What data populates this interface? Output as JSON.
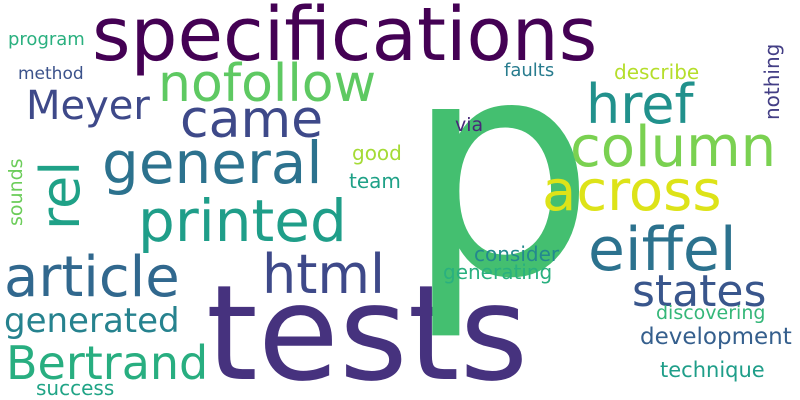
{
  "words": [
    {
      "text": "tests",
      "color": "#46327e"
    },
    {
      "text": "p",
      "color": "#44bf70"
    },
    {
      "text": "specifications",
      "color": "#440154"
    },
    {
      "text": "across",
      "color": "#dde318"
    },
    {
      "text": "general",
      "color": "#2c728e"
    },
    {
      "text": "printed",
      "color": "#1f9e89"
    },
    {
      "text": "nofollow",
      "color": "#5ec962"
    },
    {
      "text": "article",
      "color": "#31688e"
    },
    {
      "text": "column",
      "color": "#7ad151"
    },
    {
      "text": "href",
      "color": "#21918c"
    },
    {
      "text": "eiffel",
      "color": "#2c728e"
    },
    {
      "text": "html",
      "color": "#3e4989"
    },
    {
      "text": "came",
      "color": "#3e4989"
    },
    {
      "text": "rel",
      "color": "#1fa187"
    },
    {
      "text": "Bertrand",
      "color": "#28ae80"
    },
    {
      "text": "states",
      "color": "#39568c"
    },
    {
      "text": "Meyer",
      "color": "#3e4989"
    },
    {
      "text": "generated",
      "color": "#26828e"
    },
    {
      "text": "development",
      "color": "#355f8d"
    },
    {
      "text": "technique",
      "color": "#1f9e89"
    },
    {
      "text": "generating",
      "color": "#2ab07f"
    },
    {
      "text": "consider",
      "color": "#23898e"
    },
    {
      "text": "discovering",
      "color": "#35b779"
    },
    {
      "text": "success",
      "color": "#20a486"
    },
    {
      "text": "nothing",
      "color": "#433e85"
    },
    {
      "text": "describe",
      "color": "#b5de2b"
    },
    {
      "text": "faults",
      "color": "#287c8e"
    },
    {
      "text": "program",
      "color": "#2ab07f"
    },
    {
      "text": "method",
      "color": "#3b528b"
    },
    {
      "text": "good",
      "color": "#a5db36"
    },
    {
      "text": "team",
      "color": "#1fa187"
    },
    {
      "text": "via",
      "color": "#482878"
    },
    {
      "text": "sounds",
      "color": "#6ccd5a"
    }
  ]
}
